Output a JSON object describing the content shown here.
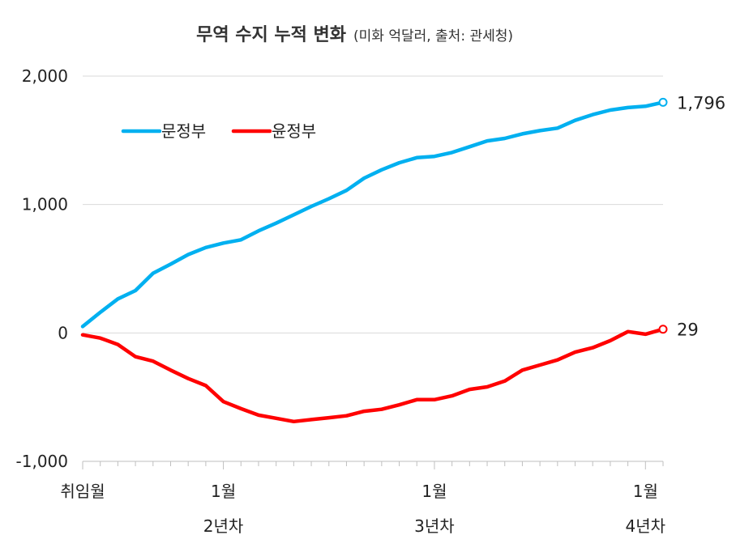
{
  "chart_data": {
    "type": "line",
    "title": "무역 수지 누적 변화",
    "subtitle": "(미화 억달러, 출처: 관세청)",
    "ylim": [
      -1000,
      2000
    ],
    "yticks": [
      -1000,
      0,
      1000,
      2000
    ],
    "ytick_labels": [
      "-1,000",
      "0",
      "1,000",
      "2,000"
    ],
    "grid": true,
    "legend_position": "top-left",
    "x_labels": [
      {
        "index": 0,
        "month": "취임월",
        "year": ""
      },
      {
        "index": 8,
        "month": "1월",
        "year": "2년차"
      },
      {
        "index": 20,
        "month": "1월",
        "year": "3년차"
      },
      {
        "index": 32,
        "month": "1월",
        "year": "4년차"
      }
    ],
    "series": [
      {
        "name": "문정부",
        "color": "#00B0F0",
        "end_label": "1,796",
        "values": [
          50,
          160,
          265,
          330,
          465,
          535,
          610,
          665,
          700,
          725,
          795,
          855,
          920,
          985,
          1045,
          1110,
          1205,
          1270,
          1325,
          1365,
          1375,
          1405,
          1450,
          1495,
          1515,
          1550,
          1575,
          1595,
          1655,
          1700,
          1735,
          1755,
          1765,
          1796
        ]
      },
      {
        "name": "윤정부",
        "color": "#FF0000",
        "end_label": "29",
        "values": [
          -15,
          -40,
          -90,
          -185,
          -220,
          -290,
          -355,
          -410,
          -535,
          -590,
          -640,
          -665,
          -690,
          -675,
          -660,
          -645,
          -610,
          -595,
          -560,
          -520,
          -520,
          -490,
          -440,
          -420,
          -375,
          -290,
          -250,
          -210,
          -150,
          -115,
          -60,
          10,
          -10,
          29
        ]
      }
    ]
  }
}
